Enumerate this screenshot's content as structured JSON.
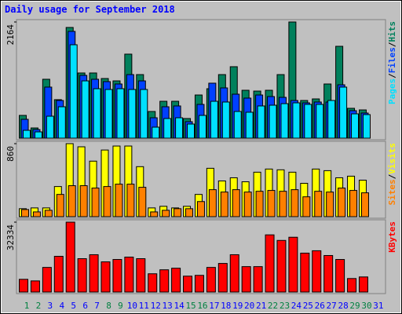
{
  "title": "Daily usage for September 2018",
  "chart_data": [
    {
      "type": "bar",
      "ylim": [
        0,
        2164
      ],
      "yticks": [
        2164
      ],
      "legend_separator": "/",
      "series": [
        {
          "name": "Hits",
          "color": "#00805c",
          "values": [
            424,
            190,
            1097,
            717,
            2062,
            1214,
            1214,
            1111,
            1067,
            1565,
            1184,
            497,
            687,
            687,
            366,
            804,
            921,
            1184,
            1331,
            892,
            877,
            892,
            1184,
            2164,
            702,
            731,
            1009,
            1711,
            556,
            526,
            null
          ]
        },
        {
          "name": "Files",
          "color": "#0040ff",
          "values": [
            351,
            161,
            951,
            702,
            1989,
            1170,
            1097,
            1053,
            1009,
            1184,
            1067,
            380,
            585,
            600,
            307,
            629,
            1024,
            936,
            819,
            746,
            804,
            775,
            760,
            702,
            658,
            673,
            673,
            994,
            512,
            468,
            null
          ]
        },
        {
          "name": "Pages",
          "color": "#00e0ff",
          "values": [
            146,
            117,
            409,
            585,
            1740,
            1067,
            921,
            907,
            921,
            907,
            907,
            205,
            366,
            380,
            263,
            424,
            687,
            673,
            497,
            483,
            600,
            614,
            643,
            658,
            629,
            629,
            702,
            951,
            453,
            439,
            null
          ]
        }
      ]
    },
    {
      "type": "bar",
      "ylim": [
        0,
        860
      ],
      "yticks": [
        860
      ],
      "legend_separator": "/",
      "series": [
        {
          "name": "Visits",
          "color": "#ffff00",
          "values": [
            94,
            103,
            103,
            355,
            860,
            823,
            654,
            785,
            832,
            832,
            589,
            103,
            122,
            103,
            122,
            262,
            570,
            421,
            458,
            411,
            524,
            561,
            552,
            524,
            393,
            561,
            542,
            458,
            477,
            430,
            null
          ]
        },
        {
          "name": "Sites",
          "color": "#ff8000",
          "values": [
            84,
            56,
            75,
            262,
            365,
            365,
            337,
            355,
            383,
            383,
            346,
            56,
            75,
            94,
            94,
            178,
            318,
            290,
            318,
            290,
            299,
            309,
            299,
            318,
            234,
            299,
            290,
            337,
            309,
            281,
            null
          ]
        }
      ]
    },
    {
      "type": "bar",
      "ylim": [
        0,
        32334
      ],
      "yticks": [
        32334
      ],
      "legend_separator": "/",
      "categories": [
        "1",
        "2",
        "3",
        "4",
        "5",
        "6",
        "7",
        "8",
        "9",
        "10",
        "11",
        "12",
        "13",
        "14",
        "15",
        "16",
        "17",
        "18",
        "19",
        "20",
        "21",
        "22",
        "23",
        "24",
        "25",
        "26",
        "27",
        "28",
        "29",
        "30",
        "31"
      ],
      "category_colors": [
        "#008040",
        "#008040",
        "#0000ff",
        "#0000ff",
        "#0000ff",
        "#0000ff",
        "#0000ff",
        "#008040",
        "#008040",
        "#0000ff",
        "#0000ff",
        "#0000ff",
        "#0000ff",
        "#0000ff",
        "#008040",
        "#008040",
        "#0000ff",
        "#0000ff",
        "#0000ff",
        "#0000ff",
        "#0000ff",
        "#008040",
        "#008040",
        "#0000ff",
        "#0000ff",
        "#0000ff",
        "#0000ff",
        "#0000ff",
        "#008040",
        "#008040",
        "#0000ff"
      ],
      "series": [
        {
          "name": "KBytes",
          "color": "#ff0000",
          "values": [
            5879,
            5144,
            11390,
            16535,
            32334,
            15433,
            17269,
            13963,
            15065,
            16167,
            15433,
            8451,
            10288,
            11023,
            7349,
            7716,
            11390,
            13228,
            17269,
            11758,
            11758,
            26455,
            23883,
            25353,
            18004,
            19107,
            16902,
            15065,
            6246,
            6981,
            null
          ]
        }
      ]
    }
  ]
}
